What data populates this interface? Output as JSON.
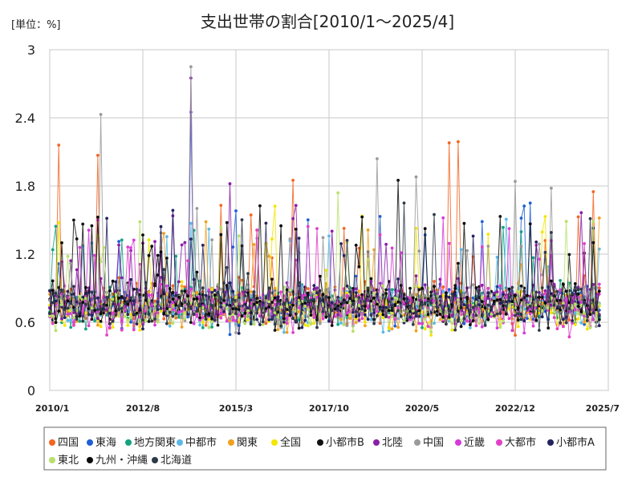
{
  "chart_data": {
    "type": "line",
    "title": "支出世帯の割合[2010/1～2025/4]",
    "unit_label": "[単位：%]",
    "xlabel": "",
    "ylabel": "",
    "ylim": [
      0,
      3
    ],
    "y_ticks": [
      "0",
      "0.6",
      "1.2",
      "1.8",
      "2.4",
      "3"
    ],
    "x_range": [
      "2010/1",
      "2025/7"
    ],
    "x_ticks": [
      "2010/1",
      "2012/8",
      "2015/3",
      "2017/10",
      "2020/5",
      "2022/12",
      "2025/7"
    ],
    "grid": true,
    "legend_position": "bottom",
    "series": [
      {
        "name": "四国",
        "color": "#f26522",
        "baseline": 0.78
      },
      {
        "name": "東海",
        "color": "#1f5fd6",
        "baseline": 0.76
      },
      {
        "name": "地方関東",
        "color": "#14a37f",
        "baseline": 0.74
      },
      {
        "name": "中都市",
        "color": "#5bb8e8",
        "baseline": 0.72
      },
      {
        "name": "関東",
        "color": "#f0a020",
        "baseline": 0.73
      },
      {
        "name": "全国",
        "color": "#f3e600",
        "baseline": 0.72
      },
      {
        "name": "小都市B",
        "color": "#111111",
        "baseline": 0.77
      },
      {
        "name": "北陸",
        "color": "#8a1fa8",
        "baseline": 0.8
      },
      {
        "name": "中国",
        "color": "#9a9a9a",
        "baseline": 0.75
      },
      {
        "name": "近畿",
        "color": "#d43bd8",
        "baseline": 0.74
      },
      {
        "name": "大都市",
        "color": "#e040c8",
        "baseline": 0.72
      },
      {
        "name": "小都市A",
        "color": "#23235f",
        "baseline": 0.75
      },
      {
        "name": "東北",
        "color": "#b8e06a",
        "baseline": 0.73
      },
      {
        "name": "九州・沖縄",
        "color": "#0a0a0a",
        "baseline": 0.76
      },
      {
        "name": "北海道",
        "color": "#2e3a4a",
        "baseline": 0.74
      }
    ],
    "notable_points": [
      {
        "series": "中国",
        "x": "2013/12",
        "y": 2.85
      },
      {
        "series": "北陸",
        "x": "2013/12",
        "y": 2.75
      },
      {
        "series": "東海",
        "x": "2013/12",
        "y": 2.45
      },
      {
        "series": "中国",
        "x": "2011/6",
        "y": 2.43
      },
      {
        "series": "四国",
        "x": "2010/4",
        "y": 2.16
      },
      {
        "series": "四国",
        "x": "2011/5",
        "y": 2.07
      },
      {
        "series": "四国",
        "x": "2021/2",
        "y": 2.18
      },
      {
        "series": "四国",
        "x": "2021/5",
        "y": 2.19
      },
      {
        "series": "中国",
        "x": "2019/2",
        "y": 2.04
      },
      {
        "series": "中国",
        "x": "2020/3",
        "y": 1.88
      },
      {
        "series": "小都市B",
        "x": "2019/9",
        "y": 1.85
      },
      {
        "series": "四国",
        "x": "2016/10",
        "y": 1.85
      },
      {
        "series": "中国",
        "x": "2022/12",
        "y": 1.84
      },
      {
        "series": "北陸",
        "x": "2015/1",
        "y": 1.82
      },
      {
        "series": "中国",
        "x": "2023/12",
        "y": 1.78
      },
      {
        "series": "四国",
        "x": "2025/2",
        "y": 1.75
      },
      {
        "series": "東北",
        "x": "2018/1",
        "y": 1.74
      }
    ]
  }
}
